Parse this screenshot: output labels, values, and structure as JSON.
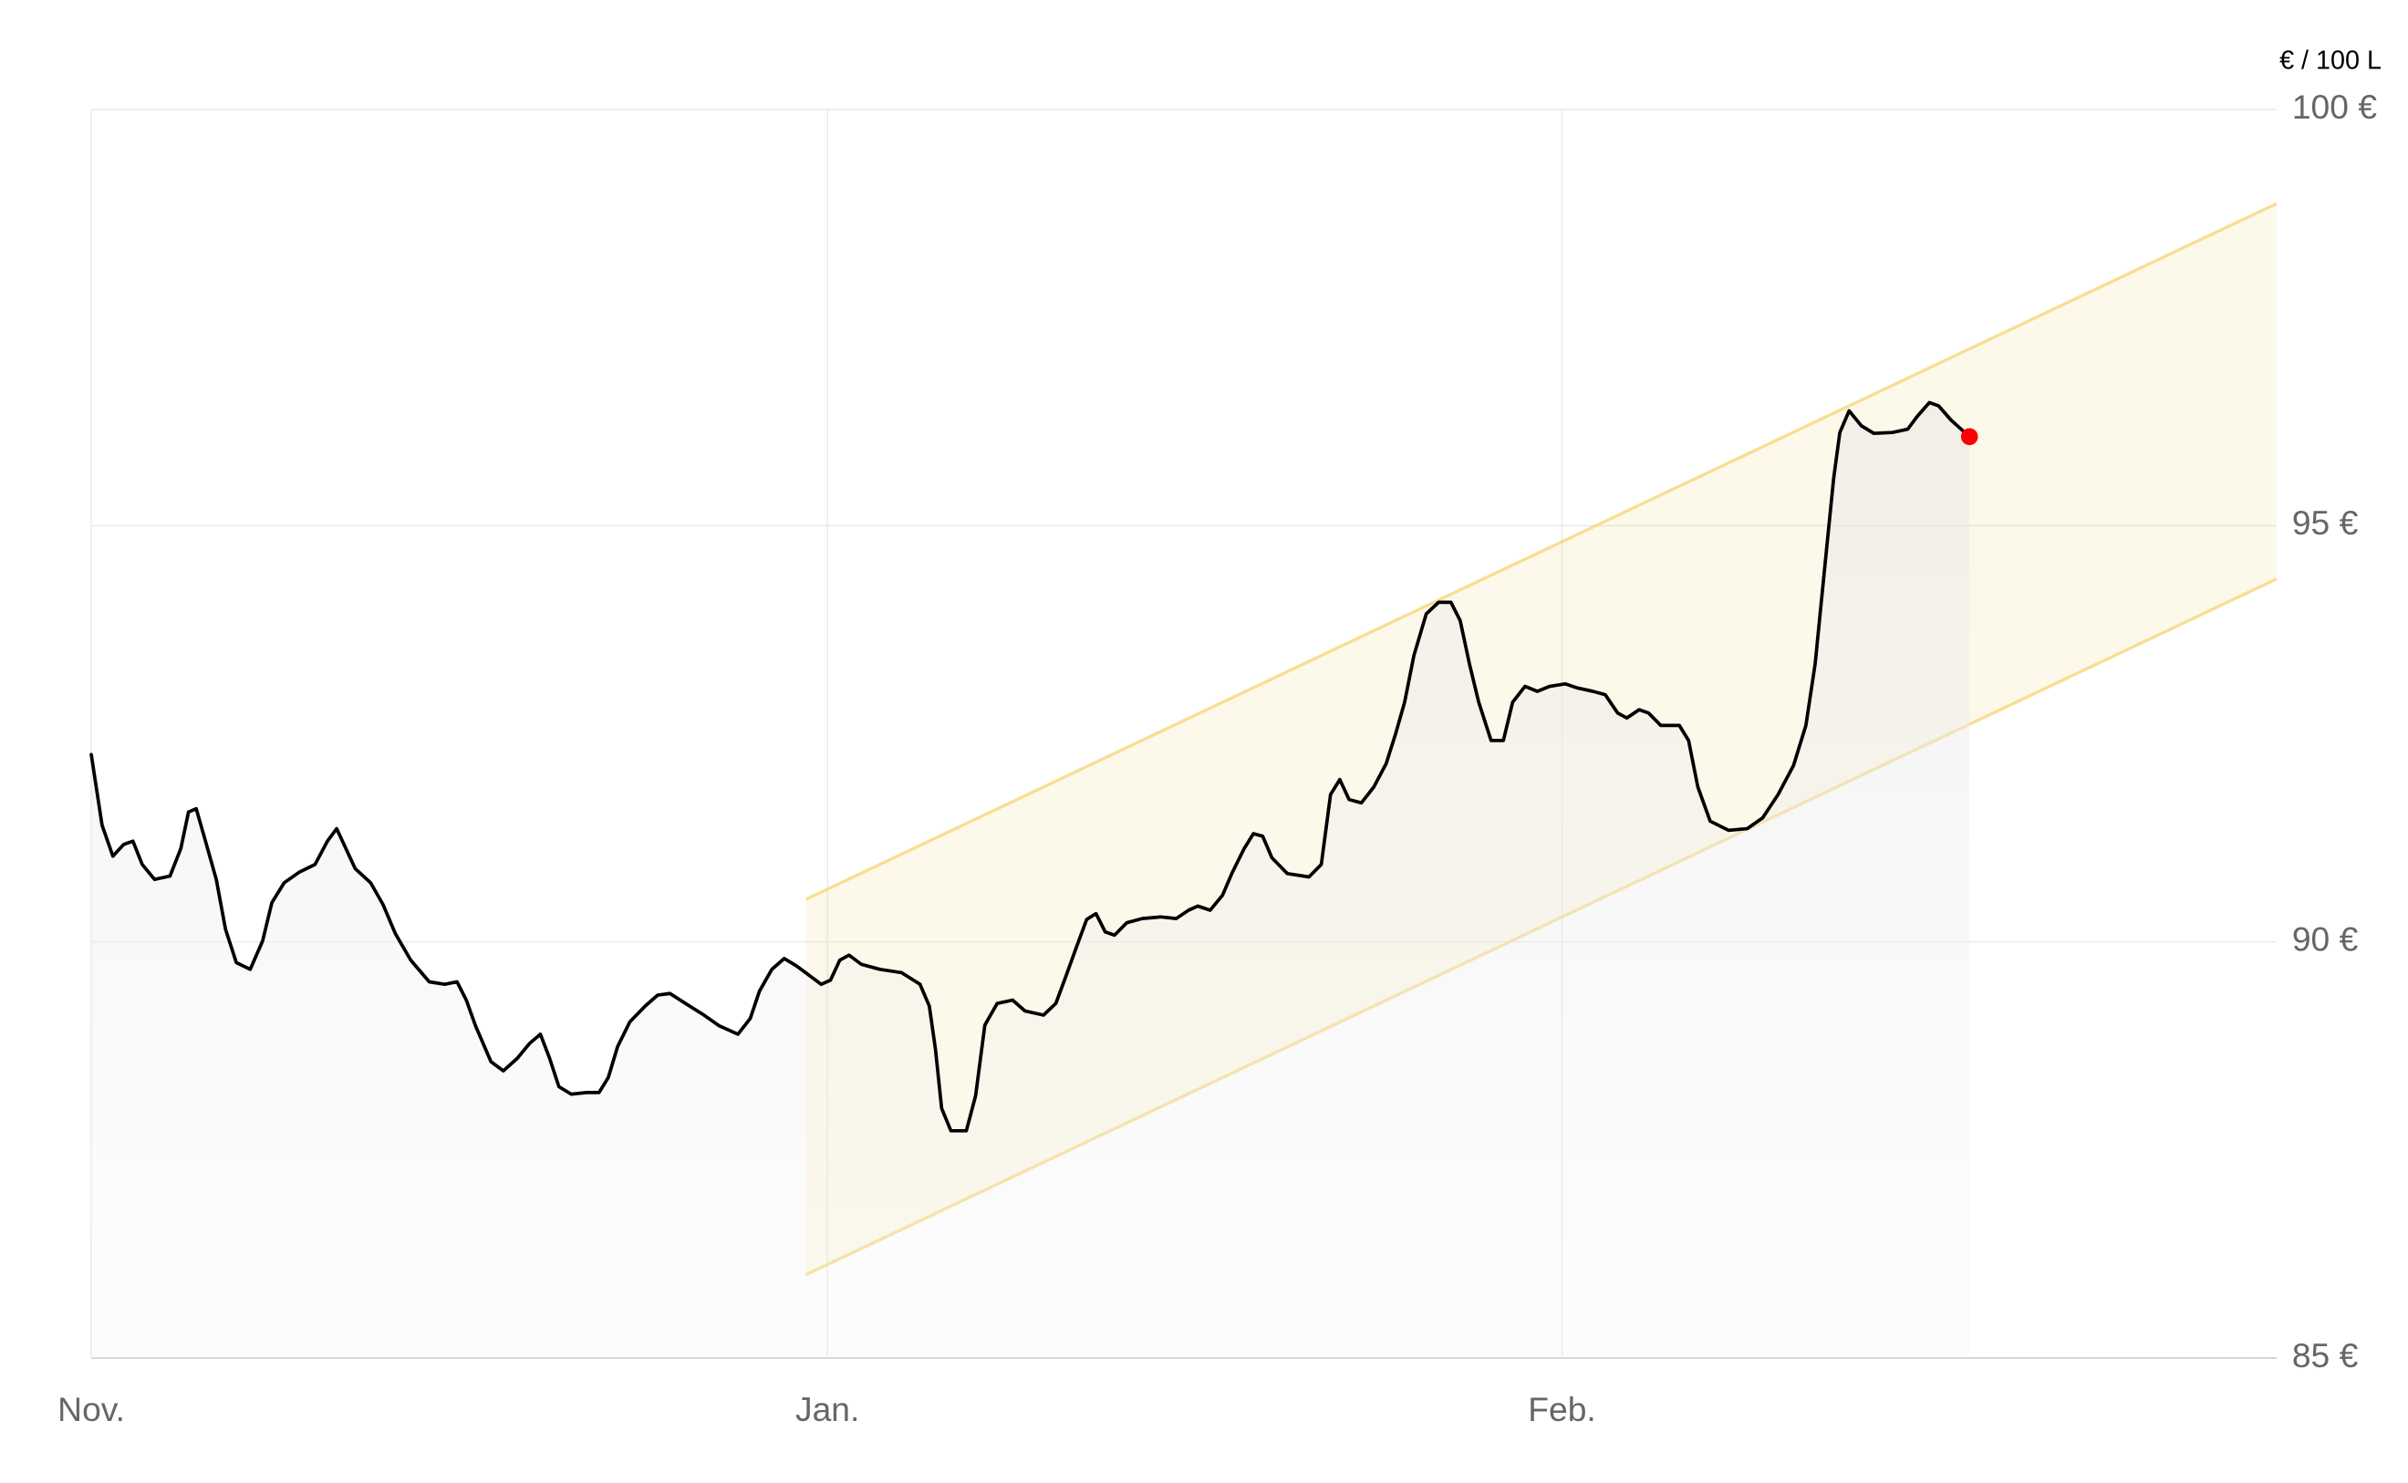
{
  "chart_data": {
    "type": "line",
    "unit_label": "€ / 100 L",
    "xlim": [
      0,
      1416
    ],
    "xticks": [
      {
        "value": 0,
        "label": "Nov."
      },
      {
        "value": 477,
        "label": "Jan."
      },
      {
        "value": 953,
        "label": "Feb."
      }
    ],
    "ylim": [
      85,
      100
    ],
    "yticks": [
      {
        "value": 85,
        "label": "85 €"
      },
      {
        "value": 90,
        "label": "90 €"
      },
      {
        "value": 95,
        "label": "95 €"
      },
      {
        "value": 100,
        "label": "100 €"
      }
    ],
    "grid": true,
    "series": [
      {
        "color": "#000000",
        "last_point_color": "#ff0000",
        "x": [
          0,
          7,
          14,
          21,
          27,
          33,
          41,
          51,
          58,
          63,
          68,
          74,
          81,
          87,
          94,
          103,
          111,
          117,
          125,
          135,
          145,
          153,
          159,
          165,
          171,
          181,
          189,
          197,
          207,
          219,
          229,
          237,
          243,
          249,
          259,
          267,
          276,
          284,
          291,
          297,
          303,
          311,
          321,
          329,
          335,
          341,
          349,
          359,
          367,
          375,
          385,
          397,
          407,
          419,
          427,
          433,
          441,
          449,
          457,
          465,
          473,
          479,
          485,
          491,
          499,
          511,
          525,
          537,
          543,
          547,
          551,
          557,
          567,
          573,
          579,
          587,
          597,
          605,
          617,
          625,
          631,
          639,
          645,
          651,
          657,
          663,
          671,
          681,
          693,
          703,
          711,
          717,
          725,
          733,
          739,
          747,
          753,
          759,
          765,
          775,
          789,
          797,
          803,
          809,
          815,
          823,
          831,
          839,
          845,
          851,
          857,
          865,
          873,
          881,
          887,
          893,
          899,
          907,
          915,
          921,
          929,
          937,
          945,
          955,
          963,
          973,
          981,
          989,
          995,
          1003,
          1009,
          1017,
          1029,
          1035,
          1041,
          1049,
          1061,
          1073,
          1083,
          1093,
          1103,
          1111,
          1117,
          1123,
          1129,
          1133,
          1139,
          1147,
          1155,
          1167,
          1177,
          1183,
          1191,
          1197,
          1205,
          1217
        ],
        "values": [
          92.25,
          91.4,
          91.03,
          91.17,
          91.21,
          90.93,
          90.75,
          90.79,
          91.12,
          91.56,
          91.6,
          91.21,
          90.75,
          90.15,
          89.75,
          89.67,
          90.01,
          90.47,
          90.71,
          90.84,
          90.93,
          91.21,
          91.36,
          91.12,
          90.88,
          90.71,
          90.45,
          90.1,
          89.78,
          89.52,
          89.49,
          89.52,
          89.3,
          88.99,
          88.56,
          88.45,
          88.6,
          88.78,
          88.89,
          88.6,
          88.26,
          88.17,
          88.19,
          88.19,
          88.37,
          88.74,
          89.04,
          89.23,
          89.36,
          89.38,
          89.26,
          89.12,
          88.99,
          88.89,
          89.08,
          89.41,
          89.67,
          89.8,
          89.71,
          89.6,
          89.49,
          89.54,
          89.78,
          89.84,
          89.73,
          89.67,
          89.63,
          89.49,
          89.23,
          88.71,
          88.0,
          87.73,
          87.73,
          88.15,
          89.0,
          89.26,
          89.3,
          89.17,
          89.12,
          89.26,
          89.56,
          89.97,
          90.27,
          90.34,
          90.12,
          90.08,
          90.23,
          90.28,
          90.3,
          90.28,
          90.38,
          90.43,
          90.38,
          90.56,
          90.82,
          91.12,
          91.3,
          91.27,
          91.01,
          90.82,
          90.78,
          90.93,
          91.77,
          91.95,
          91.71,
          91.67,
          91.86,
          92.14,
          92.49,
          92.88,
          93.44,
          93.94,
          94.08,
          94.08,
          93.86,
          93.34,
          92.88,
          92.42,
          92.42,
          92.88,
          93.07,
          93.01,
          93.07,
          93.1,
          93.05,
          93.01,
          92.97,
          92.75,
          92.69,
          92.79,
          92.75,
          92.6,
          92.6,
          92.42,
          91.86,
          91.45,
          91.34,
          91.36,
          91.49,
          91.77,
          92.12,
          92.6,
          93.34,
          94.46,
          95.57,
          96.12,
          96.38,
          96.2,
          96.11,
          96.12,
          96.16,
          96.31,
          96.48,
          96.44,
          96.27,
          96.07
        ]
      }
    ],
    "channel": {
      "color": "#f5d77a",
      "x": [
        463,
        1416
      ],
      "upper": [
        90.51,
        98.87
      ],
      "lower": [
        86.0,
        94.36
      ]
    }
  }
}
